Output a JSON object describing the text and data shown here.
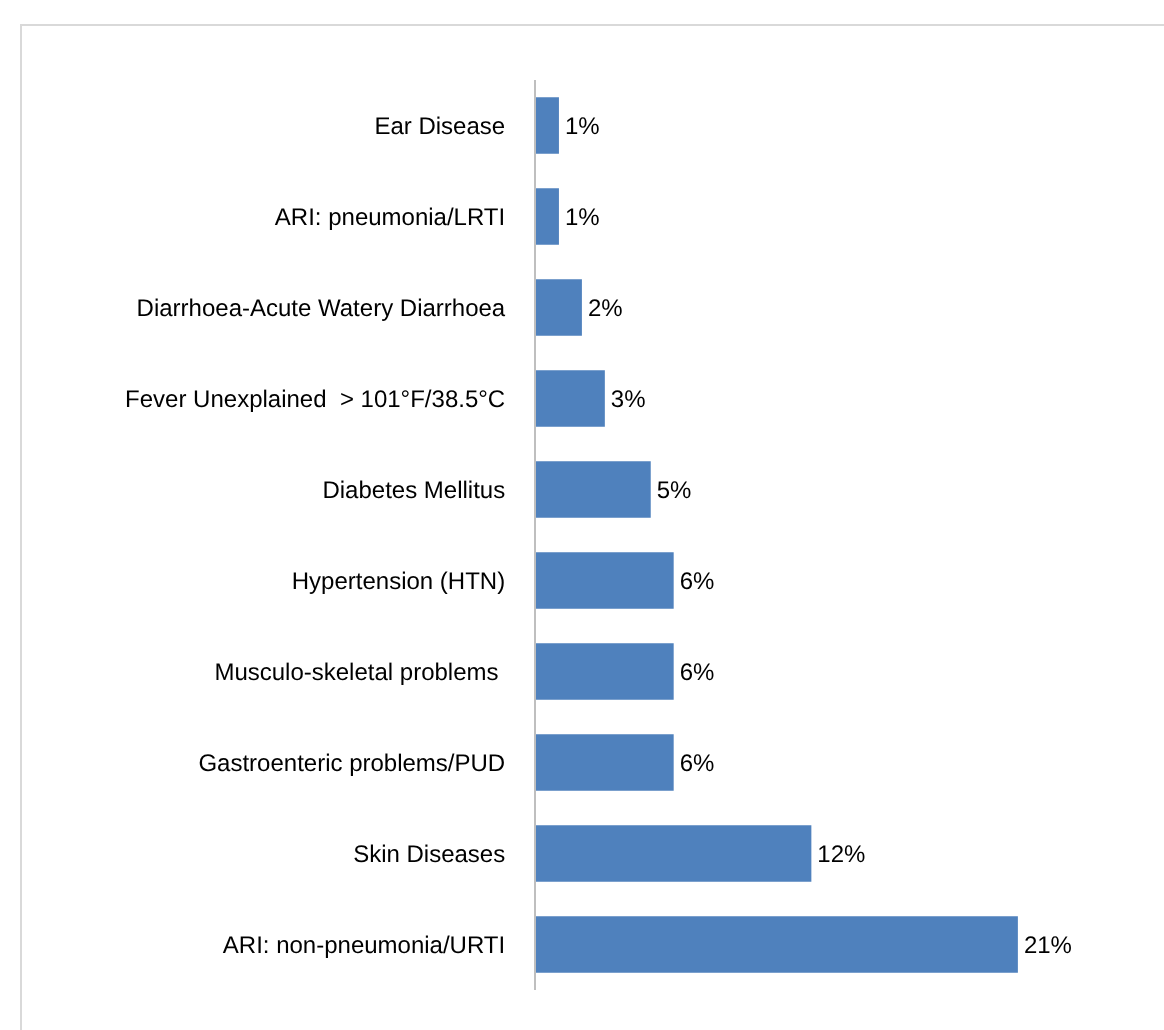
{
  "chart_data": {
    "type": "bar",
    "orientation": "horizontal",
    "categories": [
      "Ear Disease",
      "ARI: pneumonia/LRTI",
      "Diarrhoea-Acute Watery Diarrhoea",
      "Fever Unexplained  > 101°F/38.5°C",
      "Diabetes Mellitus",
      "Hypertension (HTN)",
      "Musculo-skeletal problems ",
      "Gastroenteric problems/PUD",
      "Skin Diseases",
      "ARI: non-pneumonia/URTI"
    ],
    "values": [
      1,
      1,
      2,
      3,
      5,
      6,
      6,
      6,
      12,
      21
    ],
    "value_labels": [
      "1%",
      "1%",
      "2%",
      "3%",
      "5%",
      "6%",
      "6%",
      "6%",
      "12%",
      "21%"
    ],
    "color": "#4f81bd"
  }
}
